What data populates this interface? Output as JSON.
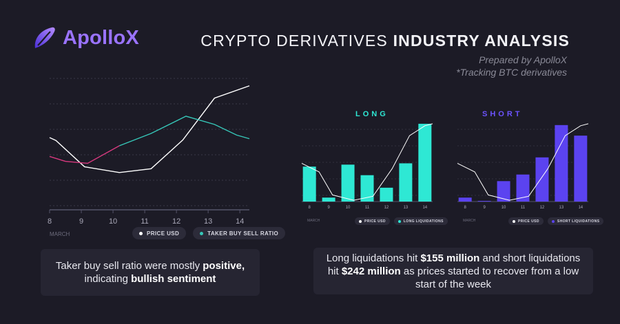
{
  "brand": {
    "name": "ApolloX"
  },
  "header": {
    "title_plain": "CRYPTO DERIVATIVES ",
    "title_bold": "INDUSTRY ANALYSIS",
    "subtitle_line1": "Prepared by ApolloX",
    "subtitle_line2": "*Tracking BTC derivatives"
  },
  "colors": {
    "background": "#1c1b26",
    "brand_purple": "#9a73ff",
    "pink": "#d8397f",
    "teal": "#36c7b8",
    "long_bar": "#2ee8d4",
    "short_bar": "#5b43f0",
    "white_line": "#ffffff"
  },
  "chart_data": [
    {
      "type": "line",
      "x": [
        8,
        9,
        10,
        11,
        12,
        13,
        14
      ],
      "month_label": "MARCH",
      "series": [
        {
          "name": "PRICE USD",
          "color": "#ffffff",
          "x": [
            8,
            8.2,
            9.1,
            10.2,
            11.2,
            12.2,
            13.2,
            14.3
          ],
          "values": [
            4.4,
            4.22,
            2.62,
            2.27,
            2.5,
            4.25,
            6.8,
            7.55
          ]
        },
        {
          "name": "TAKER BUY SELL RATIO",
          "color_segments": [
            "#d8397f",
            "#36c7b8"
          ],
          "x": [
            8,
            8.5,
            9.2,
            10.2,
            11.2,
            12.3,
            13.2,
            13.9,
            14.3
          ],
          "values": [
            3.25,
            2.95,
            2.83,
            3.9,
            4.65,
            5.7,
            5.2,
            4.55,
            4.33
          ]
        }
      ],
      "legend": [
        "PRICE USD",
        "TAKER BUY SELL RATIO"
      ],
      "grid": true,
      "legend_position": "bottom-right"
    },
    {
      "type": "bar",
      "title": "LONG",
      "categories": [
        "8",
        "9",
        "10",
        "11",
        "12",
        "13",
        "14"
      ],
      "month_label": "MARCH",
      "bars": [
        {
          "x": 8,
          "value": 53
        },
        {
          "x": 9,
          "value": 6
        },
        {
          "x": 10,
          "value": 56
        },
        {
          "x": 11,
          "value": 40
        },
        {
          "x": 12,
          "value": 21
        },
        {
          "x": 13,
          "value": 58
        },
        {
          "x": 14,
          "value": 118
        }
      ],
      "price_line": {
        "x": [
          7.6,
          8.5,
          9.2,
          10.3,
          11.3,
          12.3,
          13.2,
          14.0,
          14.4
        ],
        "values": [
          58,
          45,
          10,
          2,
          8,
          50,
          100,
          115,
          118
        ]
      },
      "legend": [
        "PRICE USD",
        "LONG LIQUIDATIONS"
      ],
      "grid": true,
      "legend_position": "bottom-right"
    },
    {
      "type": "bar",
      "title": "SHORT",
      "categories": [
        "8",
        "9",
        "10",
        "11",
        "12",
        "13",
        "14"
      ],
      "month_label": "MARCH",
      "bars": [
        {
          "x": 8,
          "value": 6
        },
        {
          "x": 9,
          "value": 1
        },
        {
          "x": 10,
          "value": 31
        },
        {
          "x": 11,
          "value": 41
        },
        {
          "x": 12,
          "value": 67
        },
        {
          "x": 13,
          "value": 116
        },
        {
          "x": 14,
          "value": 100
        }
      ],
      "price_line": {
        "x": [
          7.6,
          8.5,
          9.2,
          10.3,
          11.3,
          12.3,
          13.2,
          14.0,
          14.4
        ],
        "values": [
          58,
          45,
          10,
          2,
          8,
          50,
          100,
          115,
          118
        ]
      },
      "legend": [
        "PRICE USD",
        "SHORT LIQUIDATIONS"
      ],
      "grid": true,
      "legend_position": "bottom-right"
    }
  ],
  "callouts": {
    "left": {
      "t1": "Taker buy sell ratio were mostly ",
      "b1": "positive,",
      "t2": "indicating ",
      "b2": "bullish sentiment"
    },
    "right": {
      "t1": "Long liquidations hit ",
      "b1": "$155 million",
      "t2": " and short liquidations hit ",
      "b2": "$242 million",
      "t3": " as prices started to recover from a low start of the week"
    }
  }
}
